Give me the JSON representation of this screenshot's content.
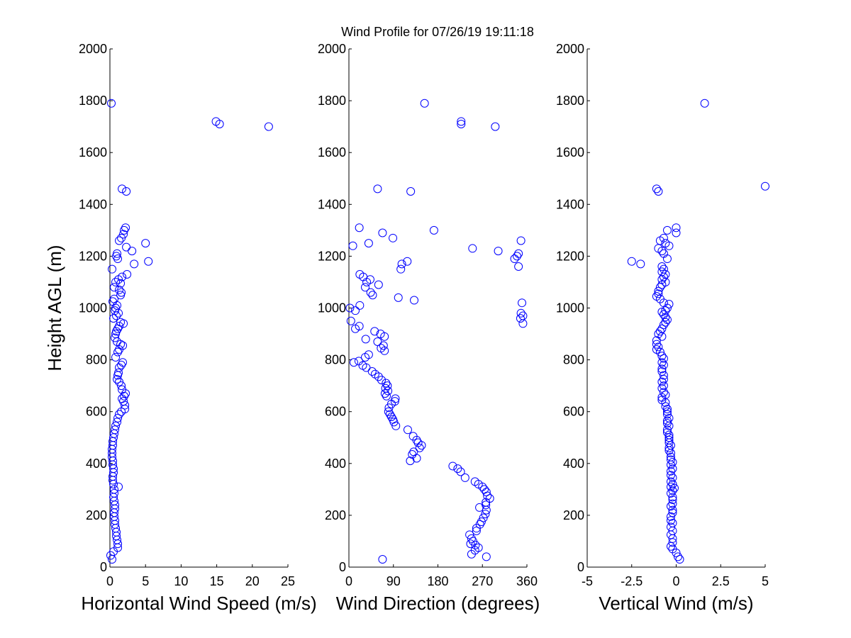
{
  "figure_title": "Wind Profile for  07/26/19 19:11:18",
  "colors": {
    "marker": "#0000ff",
    "axis": "#000000",
    "background": "#ffffff"
  },
  "chart_data": [
    {
      "type": "scatter",
      "id": "speed",
      "title": "",
      "xlabel": "Horizontal Wind Speed (m/s)",
      "ylabel": "Height AGL (m)",
      "xlim": [
        0,
        25
      ],
      "ylim": [
        0,
        2000
      ],
      "xticks": [
        0,
        5,
        10,
        15,
        20,
        25
      ],
      "xtick_labels": [
        "0",
        "5",
        "10",
        "15",
        "20",
        "25"
      ],
      "yticks": [
        0,
        200,
        400,
        600,
        800,
        1000,
        1200,
        1400,
        1600,
        1800,
        2000
      ],
      "ytick_labels": [
        "0",
        "200",
        "400",
        "600",
        "800",
        "1000",
        "1200",
        "1400",
        "1600",
        "1800",
        "2000"
      ],
      "marker": "circle",
      "points": [
        [
          0.2,
          1790
        ],
        [
          14.9,
          1720
        ],
        [
          15.4,
          1710
        ],
        [
          22.3,
          1700
        ],
        [
          1.7,
          1460
        ],
        [
          2.3,
          1450
        ],
        [
          2.2,
          1310
        ],
        [
          2.0,
          1300
        ],
        [
          1.9,
          1285
        ],
        [
          1.6,
          1270
        ],
        [
          1.3,
          1260
        ],
        [
          5.0,
          1250
        ],
        [
          2.3,
          1235
        ],
        [
          3.1,
          1220
        ],
        [
          1.0,
          1210
        ],
        [
          0.9,
          1200
        ],
        [
          1.1,
          1190
        ],
        [
          5.4,
          1180
        ],
        [
          3.4,
          1170
        ],
        [
          0.3,
          1150
        ],
        [
          2.4,
          1130
        ],
        [
          1.7,
          1120
        ],
        [
          1.2,
          1110
        ],
        [
          0.8,
          1100
        ],
        [
          1.5,
          1095
        ],
        [
          0.6,
          1080
        ],
        [
          1.3,
          1070
        ],
        [
          1.6,
          1060
        ],
        [
          1.5,
          1050
        ],
        [
          0.6,
          1035
        ],
        [
          0.4,
          1025
        ],
        [
          1.0,
          1010
        ],
        [
          0.8,
          1000
        ],
        [
          0.7,
          990
        ],
        [
          1.2,
          980
        ],
        [
          0.9,
          970
        ],
        [
          0.5,
          960
        ],
        [
          1.5,
          945
        ],
        [
          1.9,
          940
        ],
        [
          1.3,
          930
        ],
        [
          1.1,
          920
        ],
        [
          0.9,
          910
        ],
        [
          0.8,
          900
        ],
        [
          0.7,
          885
        ],
        [
          1.0,
          870
        ],
        [
          1.5,
          860
        ],
        [
          1.8,
          855
        ],
        [
          1.3,
          840
        ],
        [
          1.1,
          830
        ],
        [
          0.8,
          810
        ],
        [
          1.8,
          790
        ],
        [
          1.6,
          780
        ],
        [
          1.3,
          770
        ],
        [
          1.2,
          750
        ],
        [
          1.1,
          740
        ],
        [
          1.0,
          725
        ],
        [
          1.3,
          715
        ],
        [
          1.6,
          700
        ],
        [
          1.7,
          685
        ],
        [
          2.2,
          670
        ],
        [
          2.0,
          660
        ],
        [
          1.7,
          650
        ],
        [
          1.9,
          640
        ],
        [
          2.1,
          625
        ],
        [
          2.1,
          610
        ],
        [
          1.6,
          600
        ],
        [
          1.3,
          590
        ],
        [
          1.1,
          575
        ],
        [
          1.0,
          560
        ],
        [
          0.8,
          545
        ],
        [
          0.7,
          530
        ],
        [
          0.6,
          515
        ],
        [
          0.5,
          500
        ],
        [
          0.4,
          485
        ],
        [
          0.4,
          470
        ],
        [
          0.3,
          455
        ],
        [
          0.3,
          440
        ],
        [
          0.3,
          425
        ],
        [
          0.4,
          410
        ],
        [
          0.4,
          395
        ],
        [
          0.5,
          380
        ],
        [
          0.5,
          365
        ],
        [
          0.4,
          350
        ],
        [
          0.4,
          335
        ],
        [
          0.5,
          320
        ],
        [
          1.2,
          310
        ],
        [
          0.6,
          300
        ],
        [
          0.6,
          285
        ],
        [
          0.5,
          270
        ],
        [
          0.6,
          255
        ],
        [
          0.7,
          240
        ],
        [
          0.7,
          225
        ],
        [
          0.6,
          210
        ],
        [
          0.6,
          195
        ],
        [
          0.7,
          180
        ],
        [
          0.7,
          165
        ],
        [
          0.8,
          150
        ],
        [
          0.9,
          135
        ],
        [
          0.9,
          120
        ],
        [
          1.0,
          105
        ],
        [
          1.1,
          90
        ],
        [
          1.1,
          75
        ],
        [
          0.5,
          60
        ],
        [
          0.1,
          45
        ],
        [
          0.3,
          30
        ]
      ]
    },
    {
      "type": "scatter",
      "id": "direction",
      "title": "",
      "xlabel": "Wind Direction (degrees)",
      "ylabel": "",
      "xlim": [
        0,
        360
      ],
      "ylim": [
        0,
        2000
      ],
      "xticks": [
        0,
        90,
        180,
        270,
        360
      ],
      "xtick_labels": [
        "0",
        "90",
        "180",
        "270",
        "360"
      ],
      "yticks": [
        0,
        200,
        400,
        600,
        800,
        1000,
        1200,
        1400,
        1600,
        1800,
        2000
      ],
      "ytick_labels": [
        "0",
        "200",
        "400",
        "600",
        "800",
        "1000",
        "1200",
        "1400",
        "1600",
        "1800",
        "2000"
      ],
      "marker": "circle",
      "points": [
        [
          153,
          1790
        ],
        [
          227,
          1720
        ],
        [
          227,
          1710
        ],
        [
          296,
          1700
        ],
        [
          58,
          1460
        ],
        [
          125,
          1450
        ],
        [
          21,
          1310
        ],
        [
          172,
          1300
        ],
        [
          68,
          1290
        ],
        [
          89,
          1270
        ],
        [
          348,
          1260
        ],
        [
          40,
          1250
        ],
        [
          8,
          1240
        ],
        [
          250,
          1230
        ],
        [
          302,
          1220
        ],
        [
          343,
          1210
        ],
        [
          340,
          1200
        ],
        [
          335,
          1190
        ],
        [
          118,
          1180
        ],
        [
          107,
          1170
        ],
        [
          343,
          1160
        ],
        [
          105,
          1150
        ],
        [
          22,
          1130
        ],
        [
          29,
          1120
        ],
        [
          43,
          1110
        ],
        [
          36,
          1100
        ],
        [
          60,
          1090
        ],
        [
          33,
          1080
        ],
        [
          44,
          1060
        ],
        [
          48,
          1050
        ],
        [
          100,
          1040
        ],
        [
          132,
          1030
        ],
        [
          350,
          1020
        ],
        [
          22,
          1010
        ],
        [
          2,
          1000
        ],
        [
          13,
          990
        ],
        [
          348,
          980
        ],
        [
          352,
          970
        ],
        [
          347,
          960
        ],
        [
          4,
          950
        ],
        [
          352,
          940
        ],
        [
          21,
          930
        ],
        [
          13,
          920
        ],
        [
          52,
          910
        ],
        [
          64,
          900
        ],
        [
          72,
          890
        ],
        [
          34,
          880
        ],
        [
          58,
          870
        ],
        [
          70,
          855
        ],
        [
          65,
          845
        ],
        [
          72,
          835
        ],
        [
          40,
          820
        ],
        [
          33,
          810
        ],
        [
          10,
          790
        ],
        [
          20,
          795
        ],
        [
          28,
          778
        ],
        [
          35,
          770
        ],
        [
          47,
          755
        ],
        [
          53,
          745
        ],
        [
          60,
          735
        ],
        [
          66,
          722
        ],
        [
          75,
          710
        ],
        [
          78,
          700
        ],
        [
          74,
          690
        ],
        [
          79,
          680
        ],
        [
          73,
          670
        ],
        [
          76,
          660
        ],
        [
          94,
          650
        ],
        [
          93,
          640
        ],
        [
          86,
          630
        ],
        [
          81,
          615
        ],
        [
          80,
          600
        ],
        [
          83,
          590
        ],
        [
          86,
          580
        ],
        [
          89,
          570
        ],
        [
          91,
          560
        ],
        [
          95,
          545
        ],
        [
          119,
          530
        ],
        [
          130,
          505
        ],
        [
          137,
          490
        ],
        [
          140,
          480
        ],
        [
          147,
          470
        ],
        [
          143,
          460
        ],
        [
          131,
          445
        ],
        [
          128,
          435
        ],
        [
          137,
          420
        ],
        [
          124,
          410
        ],
        [
          210,
          390
        ],
        [
          220,
          380
        ],
        [
          226,
          368
        ],
        [
          235,
          345
        ],
        [
          255,
          330
        ],
        [
          262,
          320
        ],
        [
          270,
          310
        ],
        [
          274,
          300
        ],
        [
          278,
          290
        ],
        [
          280,
          275
        ],
        [
          285,
          265
        ],
        [
          277,
          250
        ],
        [
          277,
          240
        ],
        [
          264,
          230
        ],
        [
          278,
          220
        ],
        [
          276,
          205
        ],
        [
          272,
          190
        ],
        [
          268,
          175
        ],
        [
          265,
          165
        ],
        [
          258,
          150
        ],
        [
          258,
          140
        ],
        [
          244,
          125
        ],
        [
          248,
          110
        ],
        [
          251,
          100
        ],
        [
          246,
          90
        ],
        [
          256,
          85
        ],
        [
          262,
          75
        ],
        [
          255,
          65
        ],
        [
          248,
          50
        ],
        [
          278,
          40
        ],
        [
          68,
          30
        ]
      ]
    },
    {
      "type": "scatter",
      "id": "vertical",
      "title": "",
      "xlabel": "Vertical Wind (m/s)",
      "ylabel": "",
      "xlim": [
        -5,
        5
      ],
      "ylim": [
        0,
        2000
      ],
      "xticks": [
        -5,
        -2.5,
        0,
        2.5,
        5
      ],
      "xtick_labels": [
        "-5",
        "-2.5",
        "0",
        "2.5",
        "5"
      ],
      "yticks": [
        0,
        200,
        400,
        600,
        800,
        1000,
        1200,
        1400,
        1600,
        1800,
        2000
      ],
      "ytick_labels": [
        "0",
        "200",
        "400",
        "600",
        "800",
        "1000",
        "1200",
        "1400",
        "1600",
        "1800",
        "2000"
      ],
      "marker": "circle",
      "points": [
        [
          1.6,
          1790
        ],
        [
          5.0,
          1470
        ],
        [
          -1.1,
          1460
        ],
        [
          -1.0,
          1450
        ],
        [
          0.0,
          1310
        ],
        [
          -0.5,
          1300
        ],
        [
          0.0,
          1290
        ],
        [
          -0.7,
          1270
        ],
        [
          -0.9,
          1260
        ],
        [
          -0.6,
          1250
        ],
        [
          -0.4,
          1240
        ],
        [
          -1.0,
          1230
        ],
        [
          -0.8,
          1220
        ],
        [
          -0.7,
          1210
        ],
        [
          -0.5,
          1190
        ],
        [
          -2.5,
          1180
        ],
        [
          -2.0,
          1170
        ],
        [
          -0.8,
          1160
        ],
        [
          -0.7,
          1150
        ],
        [
          -0.8,
          1140
        ],
        [
          -0.6,
          1130
        ],
        [
          -0.7,
          1120
        ],
        [
          -0.8,
          1110
        ],
        [
          -0.6,
          1100
        ],
        [
          -0.8,
          1090
        ],
        [
          -0.9,
          1080
        ],
        [
          -1.0,
          1065
        ],
        [
          -1.0,
          1055
        ],
        [
          -1.1,
          1045
        ],
        [
          -0.9,
          1035
        ],
        [
          -0.7,
          1020
        ],
        [
          -0.4,
          1015
        ],
        [
          -0.5,
          1000
        ],
        [
          -0.6,
          990
        ],
        [
          -0.8,
          985
        ],
        [
          -0.7,
          975
        ],
        [
          -0.6,
          965
        ],
        [
          -0.5,
          955
        ],
        [
          -0.6,
          945
        ],
        [
          -0.7,
          935
        ],
        [
          -0.8,
          920
        ],
        [
          -0.9,
          910
        ],
        [
          -1.0,
          900
        ],
        [
          -0.8,
          890
        ],
        [
          -1.1,
          875
        ],
        [
          -1.1,
          860
        ],
        [
          -1.0,
          850
        ],
        [
          -1.1,
          840
        ],
        [
          -0.9,
          830
        ],
        [
          -0.8,
          815
        ],
        [
          -0.7,
          805
        ],
        [
          -0.8,
          790
        ],
        [
          -0.7,
          780
        ],
        [
          -0.8,
          765
        ],
        [
          -0.8,
          755
        ],
        [
          -0.7,
          740
        ],
        [
          -0.7,
          725
        ],
        [
          -0.8,
          715
        ],
        [
          -0.7,
          700
        ],
        [
          -0.8,
          690
        ],
        [
          -0.7,
          675
        ],
        [
          -0.6,
          665
        ],
        [
          -0.8,
          655
        ],
        [
          -0.8,
          645
        ],
        [
          -0.6,
          635
        ],
        [
          -0.6,
          620
        ],
        [
          -0.5,
          610
        ],
        [
          -0.5,
          600
        ],
        [
          -0.5,
          590
        ],
        [
          -0.4,
          575
        ],
        [
          -0.5,
          565
        ],
        [
          -0.5,
          555
        ],
        [
          -0.4,
          545
        ],
        [
          -0.5,
          530
        ],
        [
          -0.5,
          520
        ],
        [
          -0.4,
          510
        ],
        [
          -0.4,
          500
        ],
        [
          -0.4,
          490
        ],
        [
          -0.4,
          480
        ],
        [
          -0.3,
          470
        ],
        [
          -0.4,
          460
        ],
        [
          -0.4,
          450
        ],
        [
          -0.3,
          440
        ],
        [
          -0.3,
          425
        ],
        [
          -0.3,
          415
        ],
        [
          -0.2,
          405
        ],
        [
          -0.3,
          395
        ],
        [
          -0.2,
          380
        ],
        [
          -0.3,
          370
        ],
        [
          -0.3,
          355
        ],
        [
          -0.2,
          345
        ],
        [
          -0.3,
          330
        ],
        [
          -0.2,
          320
        ],
        [
          -0.3,
          310
        ],
        [
          -0.1,
          305
        ],
        [
          -0.2,
          295
        ],
        [
          -0.3,
          285
        ],
        [
          -0.2,
          270
        ],
        [
          -0.2,
          260
        ],
        [
          -0.2,
          245
        ],
        [
          -0.3,
          235
        ],
        [
          -0.2,
          220
        ],
        [
          -0.2,
          210
        ],
        [
          -0.3,
          195
        ],
        [
          -0.3,
          180
        ],
        [
          -0.2,
          170
        ],
        [
          -0.3,
          155
        ],
        [
          -0.2,
          140
        ],
        [
          -0.3,
          125
        ],
        [
          -0.2,
          110
        ],
        [
          -0.2,
          95
        ],
        [
          -0.3,
          80
        ],
        [
          -0.2,
          70
        ],
        [
          0.0,
          55
        ],
        [
          0.1,
          40
        ],
        [
          0.2,
          30
        ]
      ]
    }
  ]
}
